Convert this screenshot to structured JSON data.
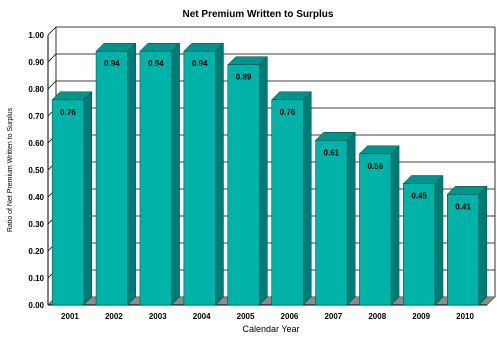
{
  "chart_data": {
    "type": "bar",
    "title": "Net Premium Written to Surplus",
    "xlabel": "Calendar Year",
    "ylabel": "Ratio of Net Premium Written to Surplus",
    "categories": [
      "2001",
      "2002",
      "2003",
      "2004",
      "2005",
      "2006",
      "2007",
      "2008",
      "2009",
      "2010"
    ],
    "values": [
      0.76,
      0.94,
      0.94,
      0.94,
      0.89,
      0.76,
      0.61,
      0.56,
      0.45,
      0.41
    ],
    "data_labels": [
      "0.76",
      "0.94",
      "0.94",
      "0.94",
      "0.89",
      "0.76",
      "0.61",
      "0.56",
      "0.45",
      "0.41"
    ],
    "y_ticks": [
      "0.00",
      "0.10",
      "0.20",
      "0.30",
      "0.40",
      "0.50",
      "0.60",
      "0.70",
      "0.80",
      "0.90",
      "1.00"
    ],
    "ylim": [
      0,
      1.0
    ],
    "grid": true,
    "legend": "none",
    "colors": {
      "bar_front": "#00b2a8",
      "bar_side": "#007a72",
      "bar_top": "#00958c",
      "gridline": "#000000",
      "floor": "#8c8c8c"
    }
  }
}
